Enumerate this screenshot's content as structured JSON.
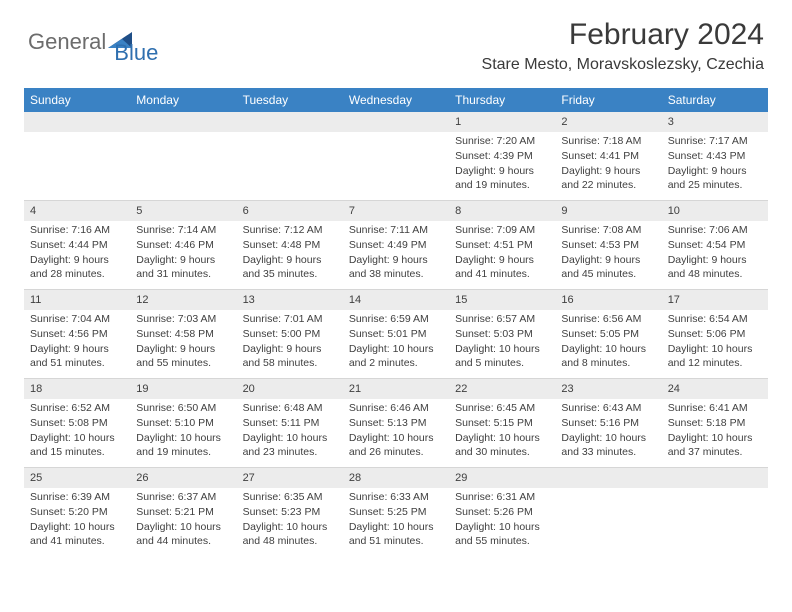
{
  "logo": {
    "part1": "General",
    "part2": "Blue"
  },
  "title": "February 2024",
  "location": "Stare Mesto, Moravskoslezsky, Czechia",
  "colors": {
    "header_bar": "#3a82c4",
    "header_text": "#ffffff",
    "cell_num_bg": "#ececec",
    "text": "#3f3f3f",
    "logo_gray": "#6c6c6c",
    "logo_blue": "#2f6faf",
    "triangle_dark": "#1f4e87",
    "triangle_light": "#3a82c4"
  },
  "dayNames": [
    "Sunday",
    "Monday",
    "Tuesday",
    "Wednesday",
    "Thursday",
    "Friday",
    "Saturday"
  ],
  "weeks": [
    [
      null,
      null,
      null,
      null,
      {
        "n": "1",
        "sr": "7:20 AM",
        "ss": "4:39 PM",
        "dl1": "Daylight: 9 hours",
        "dl2": "and 19 minutes."
      },
      {
        "n": "2",
        "sr": "7:18 AM",
        "ss": "4:41 PM",
        "dl1": "Daylight: 9 hours",
        "dl2": "and 22 minutes."
      },
      {
        "n": "3",
        "sr": "7:17 AM",
        "ss": "4:43 PM",
        "dl1": "Daylight: 9 hours",
        "dl2": "and 25 minutes."
      }
    ],
    [
      {
        "n": "4",
        "sr": "7:16 AM",
        "ss": "4:44 PM",
        "dl1": "Daylight: 9 hours",
        "dl2": "and 28 minutes."
      },
      {
        "n": "5",
        "sr": "7:14 AM",
        "ss": "4:46 PM",
        "dl1": "Daylight: 9 hours",
        "dl2": "and 31 minutes."
      },
      {
        "n": "6",
        "sr": "7:12 AM",
        "ss": "4:48 PM",
        "dl1": "Daylight: 9 hours",
        "dl2": "and 35 minutes."
      },
      {
        "n": "7",
        "sr": "7:11 AM",
        "ss": "4:49 PM",
        "dl1": "Daylight: 9 hours",
        "dl2": "and 38 minutes."
      },
      {
        "n": "8",
        "sr": "7:09 AM",
        "ss": "4:51 PM",
        "dl1": "Daylight: 9 hours",
        "dl2": "and 41 minutes."
      },
      {
        "n": "9",
        "sr": "7:08 AM",
        "ss": "4:53 PM",
        "dl1": "Daylight: 9 hours",
        "dl2": "and 45 minutes."
      },
      {
        "n": "10",
        "sr": "7:06 AM",
        "ss": "4:54 PM",
        "dl1": "Daylight: 9 hours",
        "dl2": "and 48 minutes."
      }
    ],
    [
      {
        "n": "11",
        "sr": "7:04 AM",
        "ss": "4:56 PM",
        "dl1": "Daylight: 9 hours",
        "dl2": "and 51 minutes."
      },
      {
        "n": "12",
        "sr": "7:03 AM",
        "ss": "4:58 PM",
        "dl1": "Daylight: 9 hours",
        "dl2": "and 55 minutes."
      },
      {
        "n": "13",
        "sr": "7:01 AM",
        "ss": "5:00 PM",
        "dl1": "Daylight: 9 hours",
        "dl2": "and 58 minutes."
      },
      {
        "n": "14",
        "sr": "6:59 AM",
        "ss": "5:01 PM",
        "dl1": "Daylight: 10 hours",
        "dl2": "and 2 minutes."
      },
      {
        "n": "15",
        "sr": "6:57 AM",
        "ss": "5:03 PM",
        "dl1": "Daylight: 10 hours",
        "dl2": "and 5 minutes."
      },
      {
        "n": "16",
        "sr": "6:56 AM",
        "ss": "5:05 PM",
        "dl1": "Daylight: 10 hours",
        "dl2": "and 8 minutes."
      },
      {
        "n": "17",
        "sr": "6:54 AM",
        "ss": "5:06 PM",
        "dl1": "Daylight: 10 hours",
        "dl2": "and 12 minutes."
      }
    ],
    [
      {
        "n": "18",
        "sr": "6:52 AM",
        "ss": "5:08 PM",
        "dl1": "Daylight: 10 hours",
        "dl2": "and 15 minutes."
      },
      {
        "n": "19",
        "sr": "6:50 AM",
        "ss": "5:10 PM",
        "dl1": "Daylight: 10 hours",
        "dl2": "and 19 minutes."
      },
      {
        "n": "20",
        "sr": "6:48 AM",
        "ss": "5:11 PM",
        "dl1": "Daylight: 10 hours",
        "dl2": "and 23 minutes."
      },
      {
        "n": "21",
        "sr": "6:46 AM",
        "ss": "5:13 PM",
        "dl1": "Daylight: 10 hours",
        "dl2": "and 26 minutes."
      },
      {
        "n": "22",
        "sr": "6:45 AM",
        "ss": "5:15 PM",
        "dl1": "Daylight: 10 hours",
        "dl2": "and 30 minutes."
      },
      {
        "n": "23",
        "sr": "6:43 AM",
        "ss": "5:16 PM",
        "dl1": "Daylight: 10 hours",
        "dl2": "and 33 minutes."
      },
      {
        "n": "24",
        "sr": "6:41 AM",
        "ss": "5:18 PM",
        "dl1": "Daylight: 10 hours",
        "dl2": "and 37 minutes."
      }
    ],
    [
      {
        "n": "25",
        "sr": "6:39 AM",
        "ss": "5:20 PM",
        "dl1": "Daylight: 10 hours",
        "dl2": "and 41 minutes."
      },
      {
        "n": "26",
        "sr": "6:37 AM",
        "ss": "5:21 PM",
        "dl1": "Daylight: 10 hours",
        "dl2": "and 44 minutes."
      },
      {
        "n": "27",
        "sr": "6:35 AM",
        "ss": "5:23 PM",
        "dl1": "Daylight: 10 hours",
        "dl2": "and 48 minutes."
      },
      {
        "n": "28",
        "sr": "6:33 AM",
        "ss": "5:25 PM",
        "dl1": "Daylight: 10 hours",
        "dl2": "and 51 minutes."
      },
      {
        "n": "29",
        "sr": "6:31 AM",
        "ss": "5:26 PM",
        "dl1": "Daylight: 10 hours",
        "dl2": "and 55 minutes."
      },
      null,
      null
    ]
  ],
  "labels": {
    "sunrise": "Sunrise:",
    "sunset": "Sunset:"
  }
}
